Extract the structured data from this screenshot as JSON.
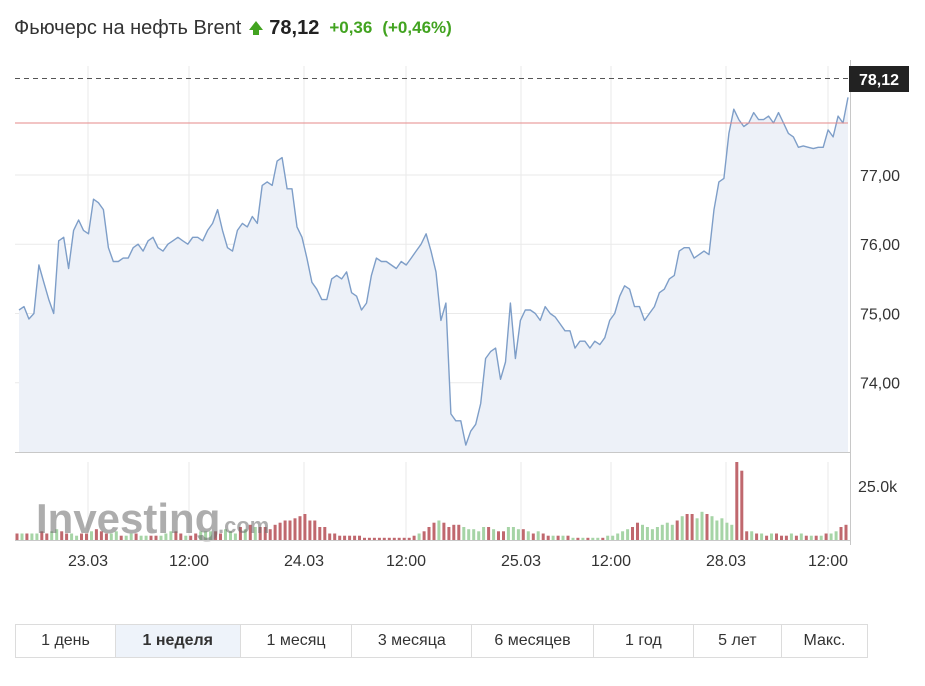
{
  "header": {
    "title": "Фьючерс на нефть Brent",
    "price": "78,12",
    "change": "+0,36",
    "change_pct": "(+0,46%)",
    "up_color": "#42a320"
  },
  "logo": {
    "word": "Investing",
    "suffix": ".com"
  },
  "periods": [
    {
      "label": "1 день",
      "active": false
    },
    {
      "label": "1 неделя",
      "active": true
    },
    {
      "label": "1 месяц",
      "active": false
    },
    {
      "label": "3 месяца",
      "active": false
    },
    {
      "label": "6 месяцев",
      "active": false
    },
    {
      "label": "1 год",
      "active": false
    },
    {
      "label": "5 лет",
      "active": false
    },
    {
      "label": "Макс.",
      "active": false
    }
  ],
  "chart_data": {
    "type": "area",
    "line_color": "#7e9ec8",
    "fill_color": "#edf1f8",
    "ylim": [
      73.0,
      78.4
    ],
    "y_ticks": [
      "74,00",
      "75,00",
      "76,00",
      "77,00"
    ],
    "y_tick_values": [
      74,
      75,
      76,
      77
    ],
    "x_ticks": [
      "23.03",
      "12:00",
      "24.03",
      "12:00",
      "25.03",
      "12:00",
      "28.03",
      "12:00"
    ],
    "current_price": 78.12,
    "current_price_label": "78,12",
    "reference_level": 77.75,
    "grid": true,
    "price": [
      75.05,
      75.1,
      74.92,
      75.0,
      75.7,
      75.45,
      75.2,
      75.0,
      76.05,
      76.1,
      75.65,
      76.2,
      76.35,
      76.2,
      76.15,
      76.65,
      76.6,
      76.5,
      75.95,
      75.75,
      75.75,
      75.8,
      75.8,
      75.95,
      76.0,
      75.9,
      76.05,
      76.1,
      75.95,
      75.9,
      76.0,
      76.05,
      76.1,
      76.05,
      76.0,
      76.1,
      76.1,
      76.05,
      76.2,
      76.3,
      76.5,
      76.2,
      75.95,
      75.9,
      76.2,
      76.3,
      76.25,
      76.4,
      76.3,
      76.85,
      76.9,
      76.85,
      77.2,
      77.25,
      76.8,
      76.8,
      76.25,
      76.1,
      75.8,
      75.45,
      75.35,
      75.2,
      75.2,
      75.5,
      75.55,
      75.5,
      75.6,
      75.3,
      75.25,
      75.05,
      75.15,
      75.55,
      75.8,
      75.75,
      75.75,
      75.7,
      75.65,
      75.75,
      75.7,
      75.8,
      75.9,
      76.0,
      76.15,
      75.9,
      75.6,
      74.9,
      75.15,
      73.55,
      73.45,
      73.45,
      73.1,
      73.3,
      73.4,
      73.7,
      74.35,
      74.45,
      74.5,
      74.05,
      74.3,
      75.15,
      74.35,
      74.9,
      75.05,
      75.05,
      75.0,
      74.9,
      75.1,
      75.0,
      74.95,
      74.85,
      74.75,
      74.75,
      74.5,
      74.6,
      74.6,
      74.5,
      74.6,
      74.55,
      74.65,
      74.9,
      75.0,
      75.25,
      75.4,
      75.35,
      75.1,
      75.1,
      74.9,
      75.0,
      75.1,
      75.3,
      75.35,
      75.5,
      75.55,
      75.9,
      75.95,
      75.95,
      75.8,
      75.85,
      75.9,
      75.85,
      76.5,
      76.9,
      76.95,
      77.6,
      77.95,
      77.8,
      77.7,
      77.75,
      77.9,
      77.8,
      77.8,
      77.85,
      77.75,
      77.9,
      77.75,
      77.6,
      77.55,
      77.4,
      77.42,
      77.4,
      77.38,
      77.4,
      77.4,
      77.65,
      77.55,
      77.85,
      77.75,
      78.12
    ],
    "volume_axis_label": "25.0k",
    "volume_axis_value": 25000,
    "volume_max": 36000,
    "volume": [
      3,
      3,
      3,
      3,
      3,
      4,
      3,
      4,
      5,
      4,
      3,
      3,
      2,
      3,
      3,
      4,
      5,
      4,
      3,
      3,
      4,
      2,
      2,
      3,
      3,
      2,
      2,
      2,
      2,
      2,
      3,
      4,
      4,
      3,
      2,
      2,
      3,
      4,
      4,
      4,
      4,
      3,
      5,
      4,
      3,
      6,
      5,
      7,
      6,
      6,
      6,
      5,
      7,
      8,
      9,
      9,
      10,
      11,
      12,
      9,
      9,
      6,
      6,
      3,
      3,
      2,
      2,
      2,
      2,
      2,
      1,
      1,
      1,
      1,
      1,
      1,
      1,
      1,
      1,
      1,
      2,
      3,
      4,
      6,
      8,
      9,
      8,
      6,
      7,
      7,
      6,
      5,
      5,
      4,
      6,
      6,
      5,
      4,
      4,
      6,
      6,
      5,
      5,
      4,
      3,
      4,
      3,
      2,
      2,
      2,
      2,
      2,
      1,
      1,
      1,
      1,
      1,
      1,
      1,
      2,
      2,
      3,
      4,
      5,
      6,
      8,
      7,
      6,
      5,
      6,
      7,
      8,
      7,
      9,
      11,
      12,
      12,
      10,
      13,
      12,
      11,
      9,
      10,
      8,
      7,
      36,
      32,
      4,
      4,
      3,
      3,
      2,
      3,
      3,
      2,
      2,
      3,
      2,
      3,
      2,
      2,
      2,
      2,
      3,
      3,
      4,
      6,
      7
    ],
    "volume_up": [
      false,
      true,
      false,
      true,
      true,
      false,
      false,
      true,
      true,
      false,
      false,
      true,
      true,
      false,
      false,
      true,
      false,
      false,
      false,
      true,
      true,
      false,
      true,
      true,
      false,
      true,
      true,
      false,
      false,
      true,
      true,
      true,
      false,
      false,
      true,
      false,
      false,
      true,
      true,
      true,
      false,
      false,
      true,
      true,
      true,
      false,
      true,
      false,
      true,
      false,
      false,
      false,
      false,
      false,
      false,
      false,
      false,
      false,
      false,
      false,
      false,
      false,
      false,
      false,
      false,
      false,
      false,
      false,
      false,
      false,
      false,
      false,
      false,
      false,
      false,
      false,
      false,
      false,
      false,
      false,
      false,
      true,
      false,
      false,
      false,
      true,
      false,
      false,
      false,
      false,
      true,
      true,
      true,
      true,
      true,
      false,
      true,
      false,
      false,
      true,
      true,
      true,
      false,
      true,
      false,
      true,
      false,
      false,
      true,
      false,
      true,
      false,
      true,
      false,
      true,
      false,
      true,
      true,
      false,
      true,
      true,
      true,
      true,
      true,
      false,
      false,
      true,
      true,
      true,
      true,
      true,
      true,
      true,
      false,
      true,
      false,
      false,
      true,
      true,
      false,
      true,
      true,
      true,
      true,
      true,
      false,
      false,
      false,
      true,
      false,
      true,
      false,
      true,
      false,
      false,
      false,
      true,
      false,
      true,
      false,
      true,
      false,
      true,
      false,
      true,
      true,
      false,
      false
    ],
    "up_color": "#a6d4a6",
    "down_color": "#c0686e",
    "reference_line_color": "#e58a8a"
  }
}
